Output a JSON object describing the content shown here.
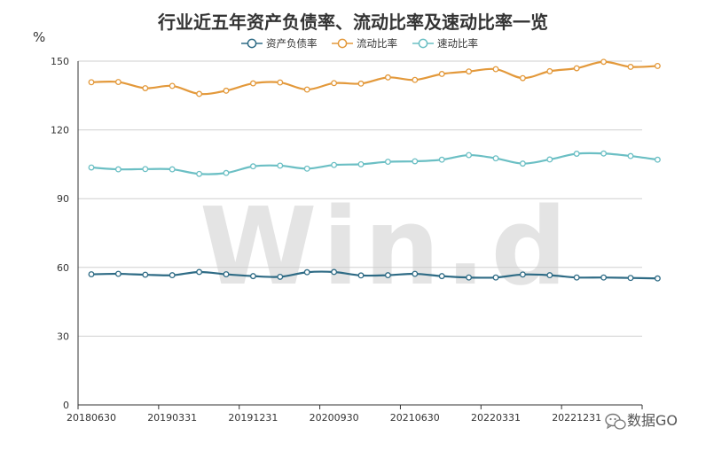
{
  "chart_data": {
    "type": "line",
    "title": "行业近五年资产负债率、流动比率及速动比率一览",
    "ylabel": "%",
    "ylim": [
      0,
      150
    ],
    "yticks": [
      0,
      30,
      60,
      90,
      120,
      150
    ],
    "grid": true,
    "legend_position": "top-center",
    "x_tick_labels": [
      "20180630",
      "20190331",
      "20191231",
      "20200930",
      "20210630",
      "20220331",
      "20221231"
    ],
    "x": [
      "20180630",
      "20180930",
      "20181231",
      "20190331",
      "20190630",
      "20190930",
      "20191231",
      "20200331",
      "20200630",
      "20200930",
      "20201231",
      "20210331",
      "20210630",
      "20210930",
      "20211231",
      "20220331",
      "20220630",
      "20220930",
      "20221231",
      "20230331",
      "20230630",
      "20230930"
    ],
    "series": [
      {
        "name": "资产负债率",
        "color": "#2e6b85",
        "values": [
          57.0,
          57.2,
          56.8,
          56.6,
          58.0,
          57.0,
          56.2,
          55.9,
          57.9,
          58.0,
          56.5,
          56.6,
          57.2,
          56.2,
          55.6,
          55.6,
          56.9,
          56.6,
          55.6,
          55.6,
          55.4,
          55.2
        ]
      },
      {
        "name": "流动比率",
        "color": "#e3993b",
        "values": [
          140.8,
          140.9,
          138.2,
          139.2,
          135.7,
          137.1,
          140.3,
          140.7,
          137.6,
          140.4,
          140.2,
          142.9,
          141.8,
          144.4,
          145.5,
          146.5,
          142.6,
          145.6,
          146.9,
          149.7,
          147.5,
          147.9
        ]
      },
      {
        "name": "速动比率",
        "color": "#6bbfc4",
        "values": [
          103.6,
          102.8,
          102.9,
          102.8,
          100.8,
          101.2,
          104.1,
          104.4,
          103.1,
          104.7,
          105.0,
          106.1,
          106.3,
          107.0,
          109.0,
          107.6,
          105.3,
          107.1,
          109.6,
          109.7,
          108.6,
          107.0
        ]
      }
    ]
  },
  "watermark": "Win.d",
  "footer": {
    "wechat_label": "数据GO",
    "icon": "wechat-icon"
  }
}
